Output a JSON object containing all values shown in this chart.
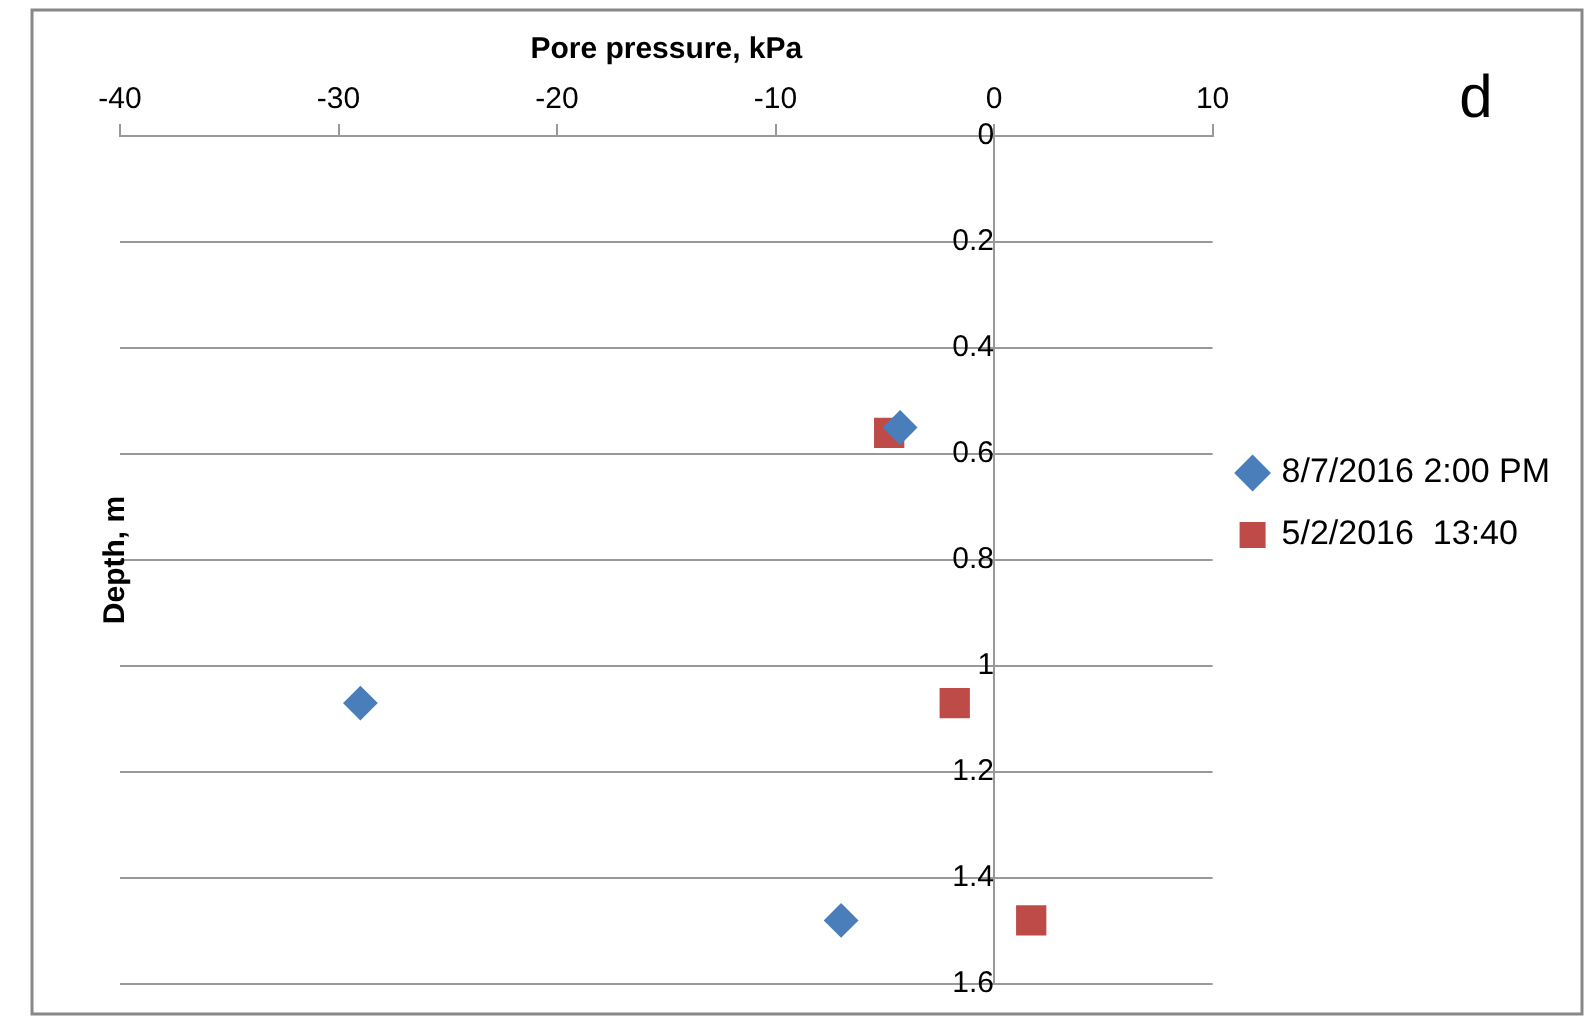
{
  "chart_data": {
    "type": "scatter",
    "title": "d",
    "xlabel": "Pore pressure, kPa",
    "ylabel": "Depth, m",
    "series": [
      {
        "name": "8/7/2016 2:00 PM",
        "color": "#4a7ebb",
        "marker": "diamond",
        "x": [
          -4.3,
          -29,
          -7
        ],
        "values": [
          0.55,
          1.07,
          1.48
        ]
      },
      {
        "name": "5/2/2016  13:40",
        "color": "#be4b48",
        "marker": "square",
        "x": [
          -4.8,
          -1.8,
          1.7
        ],
        "values": [
          0.56,
          1.07,
          1.48
        ]
      }
    ],
    "xlim": [
      -40,
      10
    ],
    "xticks": [
      -40,
      -30,
      -20,
      -10,
      0,
      10
    ],
    "ylim": [
      1.6,
      0
    ],
    "yticks": [
      0,
      0.2,
      0.4,
      0.6,
      0.8,
      1,
      1.2,
      1.4,
      1.6
    ],
    "grid": "y",
    "legend": "right"
  }
}
